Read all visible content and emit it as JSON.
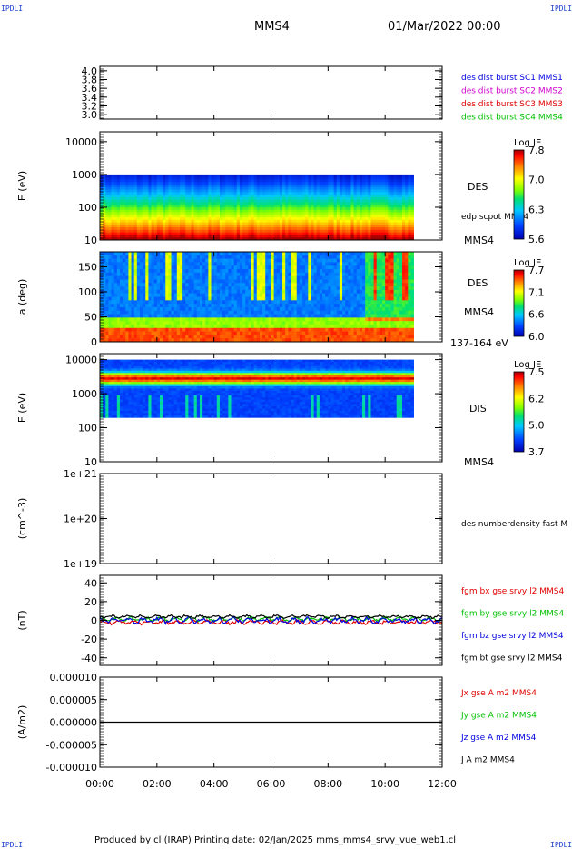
{
  "corner_labels": {
    "tl": "IPDLI",
    "tr": "IPDLI",
    "bl": "IPDLI",
    "br": "IPDLI"
  },
  "header": {
    "spacecraft": "MMS4",
    "date": "01/Mar/2022 00:00"
  },
  "footer": {
    "text": "Produced by cl (IRAP)   Printing date: 02/Jan/2025   mms_mms4_srvy_vue_web1.cl"
  },
  "colors": {
    "blue": "#0000e0",
    "magenta": "#d000d0",
    "red": "#e00000",
    "green": "#00c000",
    "black": "#000000"
  },
  "chart_data": [
    {
      "type": "line",
      "panel": "ratio",
      "ylabel": "",
      "ylim": [
        2.9,
        4.1
      ],
      "yticks": [
        "4.0",
        "3.8",
        "3.6",
        "3.4",
        "3.2",
        "3.0"
      ],
      "ytick_values": [
        4.0,
        3.8,
        3.6,
        3.4,
        3.2,
        3.0
      ],
      "legend": [
        {
          "text": "des dist burst SC1 MMS1",
          "color": "#0000e0"
        },
        {
          "text": "des dist burst SC2 MMS2",
          "color": "#d000d0"
        },
        {
          "text": "des dist burst SC3 MMS3",
          "color": "#e00000"
        },
        {
          "text": "des dist burst SC4 MMS4",
          "color": "#00c000"
        }
      ],
      "series": []
    },
    {
      "type": "heatmap",
      "panel": "des_energy",
      "ylabel": "E (eV)",
      "scale": "log",
      "ylim": [
        10,
        20000
      ],
      "yticks": [
        "10000",
        "1000",
        "100",
        "10"
      ],
      "ytick_values": [
        10000,
        1000,
        100,
        10
      ],
      "x_data_range": [
        "00:00",
        "11:00"
      ],
      "y_data_range": [
        10,
        1000
      ],
      "labels": [
        "DES",
        "edp scpot MMS4",
        "MMS4"
      ],
      "colorbar": {
        "title": "Log JE",
        "ticks": [
          "7.8",
          "7.0",
          "6.3",
          "5.6"
        ],
        "range": [
          5.6,
          7.8
        ]
      }
    },
    {
      "type": "heatmap",
      "panel": "des_pitch",
      "ylabel": "a (deg)",
      "ylim": [
        0,
        180
      ],
      "yticks": [
        "150",
        "100",
        "50",
        "0"
      ],
      "ytick_values": [
        150,
        100,
        50,
        0
      ],
      "x_data_range": [
        "00:00",
        "11:00"
      ],
      "labels": [
        "DES",
        "MMS4",
        "137-164 eV"
      ],
      "colorbar": {
        "title": "Log JE",
        "ticks": [
          "7.7",
          "7.1",
          "6.6",
          "6.0"
        ],
        "range": [
          6.0,
          7.7
        ]
      }
    },
    {
      "type": "heatmap",
      "panel": "dis_energy",
      "ylabel": "E (eV)",
      "scale": "log",
      "ylim": [
        10,
        15000
      ],
      "yticks": [
        "10000",
        "1000",
        "100",
        "10"
      ],
      "ytick_values": [
        10000,
        1000,
        100,
        10
      ],
      "x_data_range": [
        "00:00",
        "11:00"
      ],
      "y_data_range": [
        200,
        10000
      ],
      "labels": [
        "DIS",
        "MMS4"
      ],
      "colorbar": {
        "title": "Log JE",
        "ticks": [
          "7.5",
          "6.2",
          "5.0",
          "3.7"
        ],
        "range": [
          3.7,
          7.5
        ]
      }
    },
    {
      "type": "line",
      "panel": "density",
      "ylabel": "(cm^-3)",
      "scale": "log",
      "ylim": [
        1e+19,
        1e+21
      ],
      "yticks": [
        "1e+21",
        "1e+20",
        "1e+19"
      ],
      "ytick_values": [
        1e+21,
        1e+20,
        1e+19
      ],
      "legend": [
        {
          "text": "des numberdensity fast M",
          "color": "#000000"
        }
      ],
      "series": []
    },
    {
      "type": "line",
      "panel": "fgm",
      "ylabel": "(nT)",
      "ylim": [
        -48,
        48
      ],
      "yticks": [
        "40",
        "20",
        "0",
        "-20",
        "-40"
      ],
      "ytick_values": [
        40,
        20,
        0,
        -20,
        -40
      ],
      "x_data_range": [
        "00:00",
        "12:00"
      ],
      "legend": [
        {
          "text": "fgm bx gse srvy l2 MMS4",
          "color": "#e00000"
        },
        {
          "text": "fgm by gse srvy l2 MMS4",
          "color": "#00c000"
        },
        {
          "text": "fgm bz gse srvy l2 MMS4",
          "color": "#0000e0"
        },
        {
          "text": "fgm bt gse srvy l2 MMS4",
          "color": "#000000"
        }
      ],
      "series": [
        {
          "name": "fgm bx gse srvy l2 MMS4",
          "color": "#e00000",
          "base": -2,
          "amp": 1.5
        },
        {
          "name": "fgm by gse srvy l2 MMS4",
          "color": "#00c000",
          "base": 1.5,
          "amp": 1.5
        },
        {
          "name": "fgm bz gse srvy l2 MMS4",
          "color": "#0000e0",
          "base": 0,
          "amp": 2.0
        },
        {
          "name": "fgm bt gse srvy l2 MMS4",
          "color": "#000000",
          "base": 4,
          "amp": 1.0
        }
      ]
    },
    {
      "type": "line",
      "panel": "current",
      "ylabel": "(A/m2)",
      "ylim": [
        -1e-05,
        1e-05
      ],
      "yticks": [
        "0.000010",
        "0.000005",
        "0.000000",
        "-0.000005",
        "-0.000010"
      ],
      "ytick_values": [
        1e-05,
        5e-06,
        0,
        -5e-06,
        -1e-05
      ],
      "legend": [
        {
          "text": "Jx gse A m2 MMS4",
          "color": "#e00000"
        },
        {
          "text": "Jy gse A m2 MMS4",
          "color": "#00c000"
        },
        {
          "text": "Jz gse A m2 MMS4",
          "color": "#0000e0"
        },
        {
          "text": "J A m2 MMS4",
          "color": "#000000"
        }
      ],
      "series": [
        {
          "name": "J A m2 MMS4",
          "color": "#000000",
          "base": 0,
          "amp": 0
        }
      ]
    }
  ],
  "xaxis": {
    "ticks": [
      "00:00",
      "02:00",
      "04:00",
      "06:00",
      "08:00",
      "10:00",
      "12:00"
    ],
    "range_hours": [
      0,
      12
    ]
  }
}
